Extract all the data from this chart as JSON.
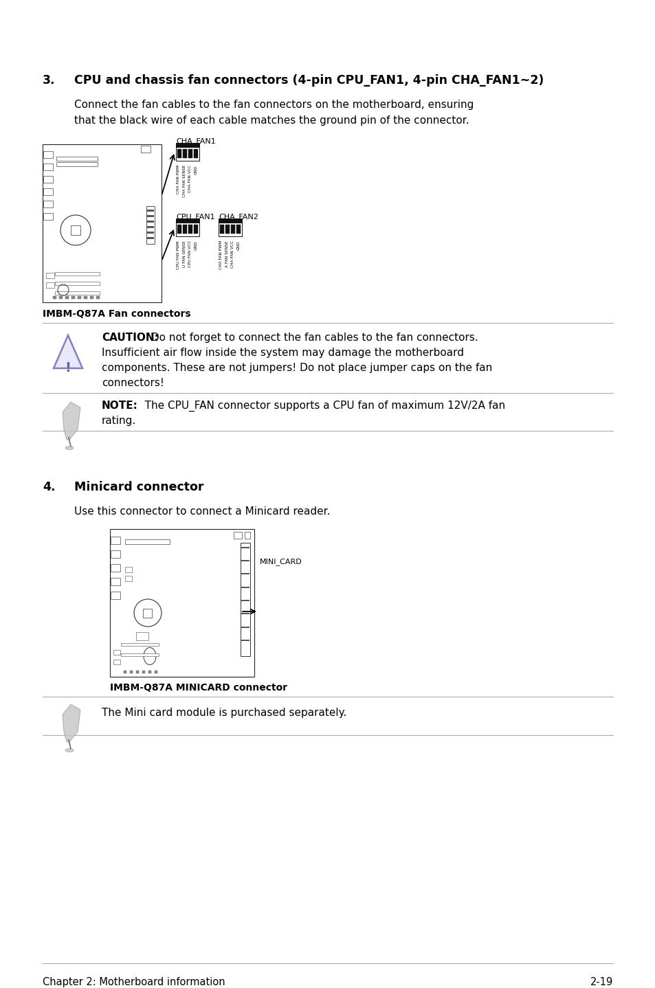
{
  "bg_color": "#ffffff",
  "section3_title_num": "3.",
  "section3_title_text": "CPU and chassis fan connectors (4-pin CPU_FAN1, 4-pin CHA_FAN1~2)",
  "section3_body1": "Connect the fan cables to the fan connectors on the motherboard, ensuring",
  "section3_body2": "that the black wire of each cable matches the ground pin of the connector.",
  "label_cha_fan1": "CHA_FAN1",
  "label_cpu_fan1": "CPU_FAN1",
  "label_cha_fan2": "CHA_FAN2",
  "caption_fan": "IMBM-Q87A Fan connectors",
  "caution_bold": "CAUTION:",
  "caution_line1": " Do not forget to connect the fan cables to the fan connectors.",
  "caution_line2": "Insufficient air flow inside the system may damage the motherboard",
  "caution_line3": "components. These are not jumpers! Do not place jumper caps on the fan",
  "caution_line4": "connectors!",
  "note_bold": "NOTE:",
  "note_line1": "   The CPU_FAN connector supports a CPU fan of maximum 12V/2A fan",
  "note_line2": "rating.",
  "section4_title_num": "4.",
  "section4_title_text": "Minicard connector",
  "section4_body": "Use this connector to connect a Minicard reader.",
  "caption_mini": "IMBM-Q87A MINICARD connector",
  "label_mini_card": "MINI_CARD",
  "note2_text": "The Mini card module is purchased separately.",
  "footer_left": "Chapter 2: Motherboard information",
  "footer_right": "2-19",
  "cha_fan1_pins": [
    "CHA FAN PWM",
    "CHA FAN SENSE",
    "CHA FAN VCC",
    "GND"
  ],
  "cpu_fan1_pins": [
    "CPU FAN PWM",
    "U FAN SENSE",
    "CPU FAN VCC",
    "GND"
  ],
  "cha_fan2_pins": [
    "CHA FAN PWM",
    "A FAN SENSE",
    "CHA FAN VCC",
    "GND"
  ]
}
